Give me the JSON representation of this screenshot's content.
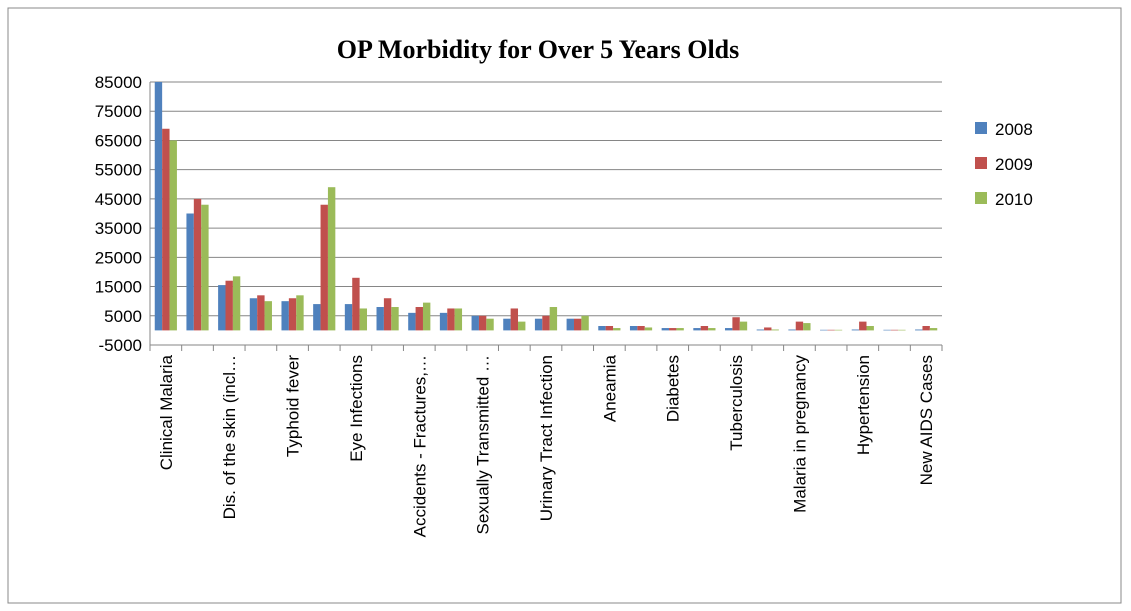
{
  "chart_data": {
    "type": "bar",
    "title": "OP Morbidity for Over 5 Years  Olds",
    "categories": [
      "Clinical Malaria",
      null,
      "Dis. of the skin (incl…",
      null,
      "Typhoid fever",
      null,
      "Eye Infections",
      null,
      "Accidents - Fractures,…",
      null,
      "Sexually Transmitted …",
      null,
      "Urinary Tract Infection",
      null,
      "Aneamia",
      null,
      "Diabetes",
      null,
      "Tuberculosis",
      null,
      "Malaria in pregnancy",
      null,
      "Hypertension",
      null,
      "New AIDS Cases"
    ],
    "series": [
      {
        "name": "2008",
        "color": "#4f81bd",
        "values": [
          85000,
          40000,
          15500,
          11000,
          10000,
          9000,
          9000,
          8000,
          6000,
          6000,
          5000,
          4000,
          4000,
          4000,
          1500,
          1500,
          800,
          800,
          800,
          300,
          300,
          200,
          300,
          200,
          300
        ]
      },
      {
        "name": "2009",
        "color": "#c0504d",
        "values": [
          69000,
          45000,
          17000,
          12000,
          11000,
          43000,
          18000,
          11000,
          8000,
          7500,
          5000,
          7500,
          5000,
          4000,
          1500,
          1500,
          800,
          1500,
          4500,
          1000,
          3000,
          200,
          3000,
          200,
          1500
        ]
      },
      {
        "name": "2010",
        "color": "#9bbb59",
        "values": [
          65000,
          43000,
          18500,
          10000,
          12000,
          49000,
          7500,
          8000,
          9500,
          7500,
          4000,
          3000,
          8000,
          5000,
          800,
          1000,
          800,
          800,
          3000,
          300,
          2500,
          200,
          1500,
          200,
          800
        ]
      }
    ],
    "ylim": [
      -5000,
      85000
    ],
    "yticks": [
      -5000,
      5000,
      15000,
      25000,
      35000,
      45000,
      55000,
      65000,
      75000,
      85000
    ],
    "grid": true,
    "legend": "right"
  }
}
